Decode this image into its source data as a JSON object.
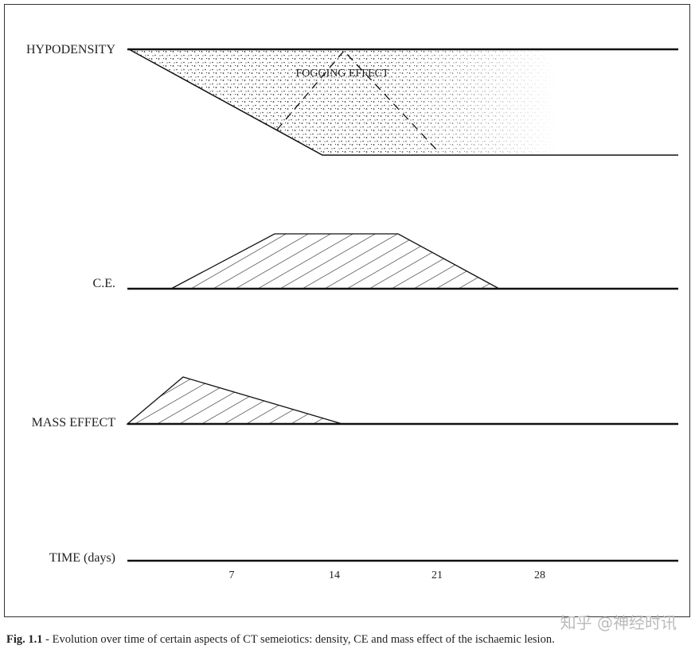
{
  "rows": [
    {
      "label": "HYPODENSITY"
    },
    {
      "label": "C.E."
    },
    {
      "label": "MASS EFFECT"
    }
  ],
  "annotation": "FOGGING EFFECT",
  "time_axis": {
    "label": "TIME (days)",
    "ticks": [
      "7",
      "14",
      "21",
      "28"
    ]
  },
  "caption": {
    "figure": "Fig. 1.1",
    "text": " - Evolution over time of certain aspects of CT semeiotics: density, CE and mass effect of the ischaemic lesion."
  },
  "watermark": "知乎 @神经时讯"
}
